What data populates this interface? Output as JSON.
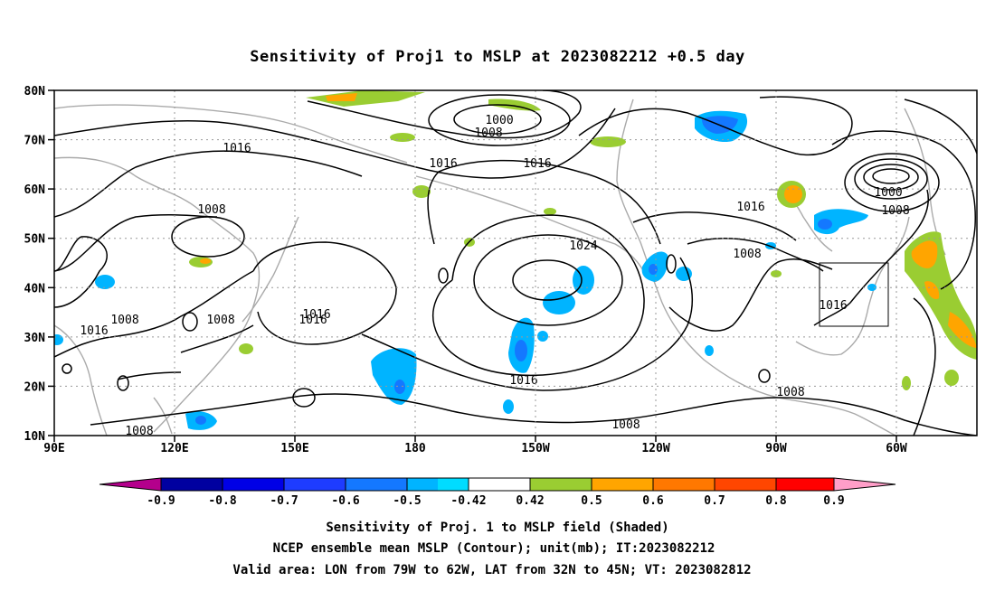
{
  "title": "Sensitivity of Proj1 to MSLP at 2023082212 +0.5 day",
  "map": {
    "lon_labels": [
      "90E",
      "120E",
      "150E",
      "180",
      "150W",
      "120W",
      "90W",
      "60W"
    ],
    "lat_labels": [
      "80N",
      "70N",
      "60N",
      "50N",
      "40N",
      "30N",
      "20N",
      "10N"
    ],
    "contour_labels": [
      "1000",
      "1008",
      "1016",
      "1016",
      "1008",
      "1016",
      "1008",
      "1016",
      "1016",
      "1008",
      "1016",
      "1024",
      "1016",
      "1008",
      "1016",
      "1008",
      "1000",
      "1008",
      "1016",
      "1008",
      "1008"
    ],
    "valid_area": {
      "lon_min": -79,
      "lon_max": -62,
      "lat_min": 32,
      "lat_max": 45
    }
  },
  "colorbar": {
    "labels": [
      "-0.9",
      "-0.8",
      "-0.7",
      "-0.6",
      "-0.5",
      "-0.42",
      "0.42",
      "0.5",
      "0.6",
      "0.7",
      "0.8",
      "0.9"
    ],
    "colors": [
      "#b4008c",
      "#0000a0",
      "#0000e6",
      "#1e3cff",
      "#1478ff",
      "#00b4ff",
      "#00dcff",
      "#ffffff",
      "#9acd32",
      "#ffa500",
      "#ff7800",
      "#ff4600",
      "#ff0000",
      "#ff9ec8"
    ]
  },
  "caption": {
    "line1": "Sensitivity of Proj. 1 to MSLP field (Shaded)",
    "line2": "NCEP ensemble mean MSLP (Contour); unit(mb); IT:2023082212",
    "line3": "Valid area: LON from 79W to 62W, LAT from 32N to 45N; VT: 2023082812"
  }
}
